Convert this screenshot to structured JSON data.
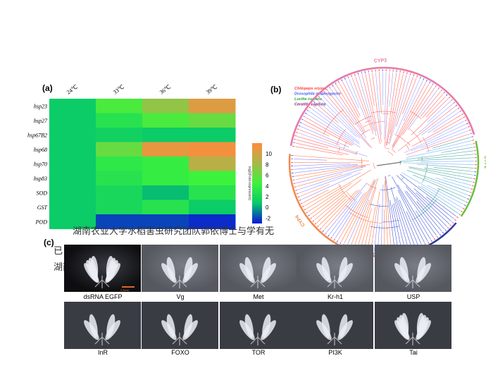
{
  "panels": {
    "a": "(a)",
    "b": "(b)",
    "c": "(c)"
  },
  "chart_data": {
    "type": "heatmap",
    "title": "",
    "columns": [
      "24℃",
      "33℃",
      "36℃",
      "39℃"
    ],
    "rows": [
      "hsp23",
      "hsp27",
      "hsp67B2",
      "hsp68",
      "hsp70",
      "hsp83",
      "SOD",
      "GST",
      "POD"
    ],
    "values": [
      [
        1.0,
        5.0,
        7.5,
        10.5
      ],
      [
        1.0,
        3.0,
        5.0,
        6.0
      ],
      [
        1.0,
        1.5,
        1.0,
        1.0
      ],
      [
        1.0,
        6.0,
        11.0,
        11.5
      ],
      [
        1.0,
        3.5,
        4.0,
        9.0
      ],
      [
        1.0,
        3.0,
        4.0,
        4.5
      ],
      [
        1.0,
        2.0,
        0.5,
        3.0
      ],
      [
        1.0,
        2.0,
        3.0,
        1.0
      ],
      [
        1.0,
        -2.0,
        -2.0,
        -2.5
      ]
    ],
    "colorbar": {
      "ticks": [
        10,
        8,
        6,
        4,
        2,
        0,
        -2
      ],
      "range": [
        -3,
        12
      ],
      "label": "log2(Fold expression)",
      "colors": [
        "#0b14d9",
        "#08c96a",
        "#3cf23c",
        "#a8b84a",
        "#ff8a3c"
      ]
    }
  },
  "tree": {
    "legend": [
      {
        "label": "Chilopeps oryzae",
        "color": "#ff3b3b"
      },
      {
        "label": "Drosophila melanogaster",
        "color": "#3b5bff"
      },
      {
        "label": "Lucilia cuprina",
        "color": "#2aa82a"
      },
      {
        "label": "Ceratitis capitata",
        "color": "#7a1f7a"
      }
    ],
    "clades": [
      {
        "name": "CYP3",
        "color": "#e77aa5"
      },
      {
        "name": "CYP2",
        "color": "#6bbf3a"
      },
      {
        "name": "Mito",
        "color": "#2f3b9c"
      },
      {
        "name": "CYP4",
        "color": "#f08a4a"
      }
    ]
  },
  "overlay": {
    "line1": "湖南农业大学水稻害虫研究团队郭依博士与学有无",
    "line2": "已",
    "line3": "湖南"
  },
  "photos": {
    "row1": [
      "dsRNA EGFP",
      "Vg",
      "Met",
      "Kr-h1",
      "USP"
    ],
    "row2": [
      "InR",
      "FOXO",
      "TOR",
      "PI3K",
      "Tai"
    ],
    "scale": "0.5mm"
  }
}
